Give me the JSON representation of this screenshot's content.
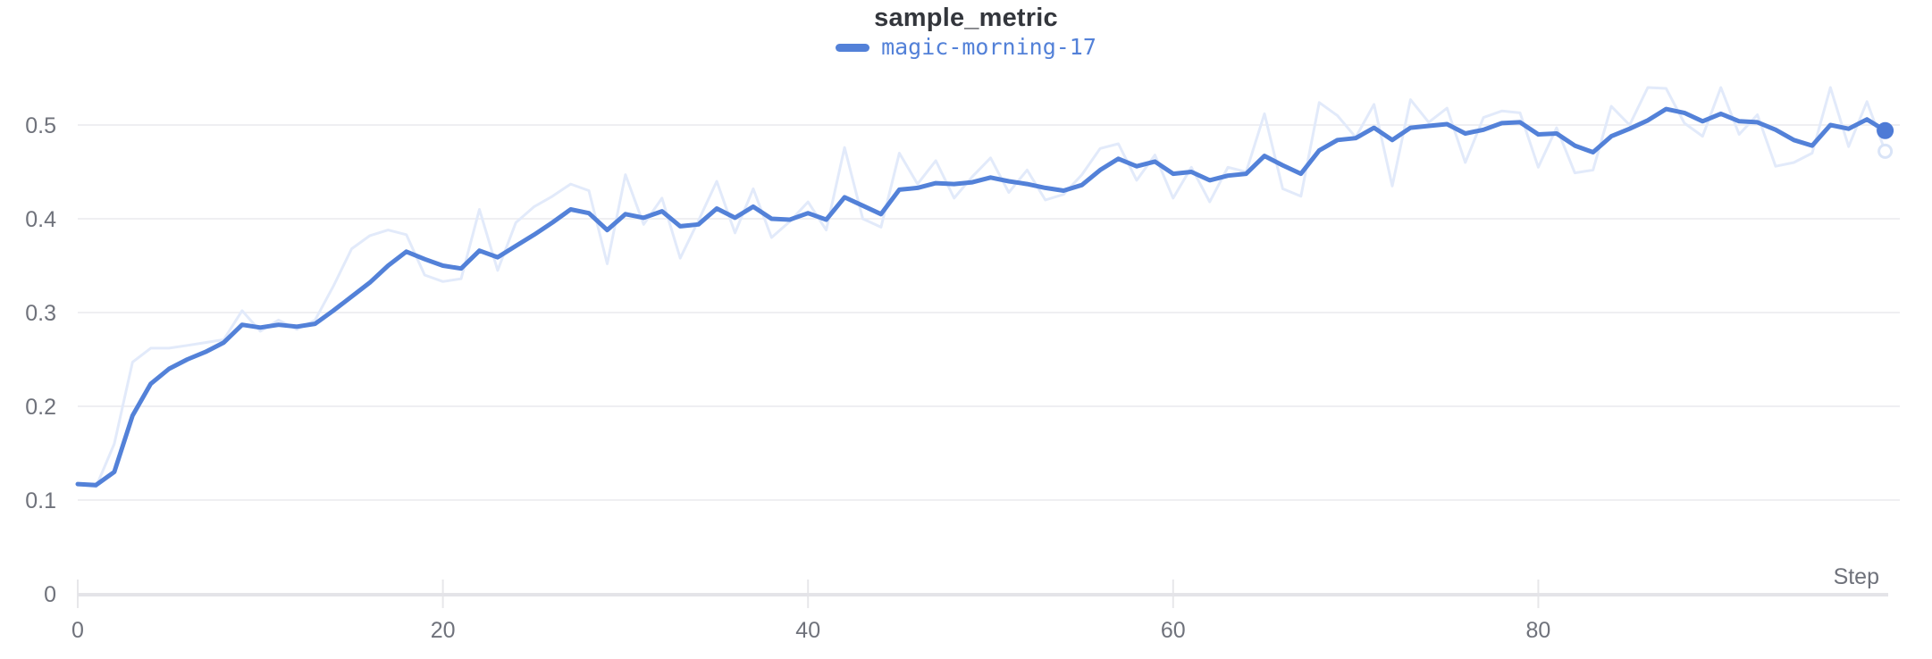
{
  "header": {
    "title": "sample_metric"
  },
  "legend": {
    "items": [
      {
        "label": "magic-morning-17",
        "color": "#5381d8"
      }
    ]
  },
  "colors": {
    "smoothed_line": "#5381d8",
    "raw_line": "#e2eafa",
    "raw_ring_stroke": "#d9e4f7",
    "end_dot": "#4e7bd6",
    "gridline": "#efeff2",
    "axis_line": "#e4e4e8",
    "tick_mark": "#e7e7ea",
    "tick_label": "#6f727b",
    "title_text": "#33363c",
    "background": "#ffffff"
  },
  "chart_data": {
    "type": "line",
    "title": "sample_metric",
    "xlabel": "Step",
    "ylabel": "",
    "grid": "horizontal",
    "legend_position": "top-center",
    "xlim": [
      0,
      99
    ],
    "ylim": [
      0,
      0.56
    ],
    "x_ticks": [
      {
        "label": "0",
        "value": 0
      },
      {
        "label": "20",
        "value": 20
      },
      {
        "label": "40",
        "value": 40
      },
      {
        "label": "60",
        "value": 60
      },
      {
        "label": "80",
        "value": 80
      }
    ],
    "y_ticks": [
      {
        "label": "0",
        "value": 0
      },
      {
        "label": "0.1",
        "value": 0.1
      },
      {
        "label": "0.2",
        "value": 0.2
      },
      {
        "label": "0.3",
        "value": 0.3
      },
      {
        "label": "0.4",
        "value": 0.4
      },
      {
        "label": "0.5",
        "value": 0.5
      }
    ],
    "x": [
      0,
      1,
      2,
      3,
      4,
      5,
      6,
      7,
      8,
      9,
      10,
      11,
      12,
      13,
      14,
      15,
      16,
      17,
      18,
      19,
      20,
      21,
      22,
      23,
      24,
      25,
      26,
      27,
      28,
      29,
      30,
      31,
      32,
      33,
      34,
      35,
      36,
      37,
      38,
      39,
      40,
      41,
      42,
      43,
      44,
      45,
      46,
      47,
      48,
      49,
      50,
      51,
      52,
      53,
      54,
      55,
      56,
      57,
      58,
      59,
      60,
      61,
      62,
      63,
      64,
      65,
      66,
      67,
      68,
      69,
      70,
      71,
      72,
      73,
      74,
      75,
      76,
      77,
      78,
      79,
      80,
      81,
      82,
      83,
      84,
      85,
      86,
      87,
      88,
      89,
      90,
      91,
      92,
      93,
      94,
      95,
      96,
      97,
      98,
      99
    ],
    "series": [
      {
        "name": "magic-morning-17",
        "role": "raw-unsmoothed",
        "color": "#e2eafa",
        "values": [
          0.117,
          0.114,
          0.16,
          0.247,
          0.262,
          0.262,
          0.265,
          0.268,
          0.271,
          0.302,
          0.28,
          0.292,
          0.282,
          0.292,
          0.328,
          0.368,
          0.382,
          0.388,
          0.383,
          0.34,
          0.333,
          0.336,
          0.41,
          0.345,
          0.396,
          0.413,
          0.424,
          0.437,
          0.43,
          0.352,
          0.447,
          0.394,
          0.422,
          0.358,
          0.398,
          0.44,
          0.385,
          0.432,
          0.38,
          0.397,
          0.418,
          0.388,
          0.476,
          0.4,
          0.391,
          0.47,
          0.437,
          0.462,
          0.422,
          0.445,
          0.465,
          0.428,
          0.452,
          0.42,
          0.426,
          0.447,
          0.475,
          0.48,
          0.441,
          0.468,
          0.422,
          0.455,
          0.418,
          0.455,
          0.45,
          0.512,
          0.432,
          0.424,
          0.524,
          0.51,
          0.487,
          0.522,
          0.435,
          0.527,
          0.503,
          0.518,
          0.46,
          0.508,
          0.515,
          0.513,
          0.455,
          0.497,
          0.449,
          0.452,
          0.52,
          0.5,
          0.54,
          0.539,
          0.502,
          0.488,
          0.54,
          0.49,
          0.511,
          0.456,
          0.46,
          0.47,
          0.54,
          0.477,
          0.525,
          0.472
        ]
      },
      {
        "name": "magic-morning-17 (smoothed)",
        "role": "smoothed",
        "color": "#5381d8",
        "values": [
          0.117,
          0.116,
          0.13,
          0.19,
          0.224,
          0.24,
          0.25,
          0.258,
          0.268,
          0.287,
          0.284,
          0.287,
          0.285,
          0.288,
          0.302,
          0.317,
          0.332,
          0.35,
          0.365,
          0.357,
          0.35,
          0.347,
          0.366,
          0.359,
          0.371,
          0.383,
          0.396,
          0.41,
          0.406,
          0.388,
          0.405,
          0.401,
          0.408,
          0.392,
          0.394,
          0.411,
          0.401,
          0.413,
          0.4,
          0.399,
          0.406,
          0.399,
          0.423,
          0.414,
          0.405,
          0.431,
          0.433,
          0.438,
          0.437,
          0.439,
          0.444,
          0.44,
          0.437,
          0.433,
          0.43,
          0.436,
          0.452,
          0.464,
          0.456,
          0.461,
          0.448,
          0.45,
          0.441,
          0.446,
          0.448,
          0.467,
          0.457,
          0.448,
          0.473,
          0.484,
          0.486,
          0.497,
          0.484,
          0.497,
          0.499,
          0.501,
          0.491,
          0.495,
          0.502,
          0.503,
          0.49,
          0.491,
          0.478,
          0.471,
          0.488,
          0.496,
          0.505,
          0.517,
          0.513,
          0.504,
          0.512,
          0.504,
          0.503,
          0.495,
          0.484,
          0.478,
          0.5,
          0.496,
          0.506,
          0.494
        ]
      }
    ]
  }
}
